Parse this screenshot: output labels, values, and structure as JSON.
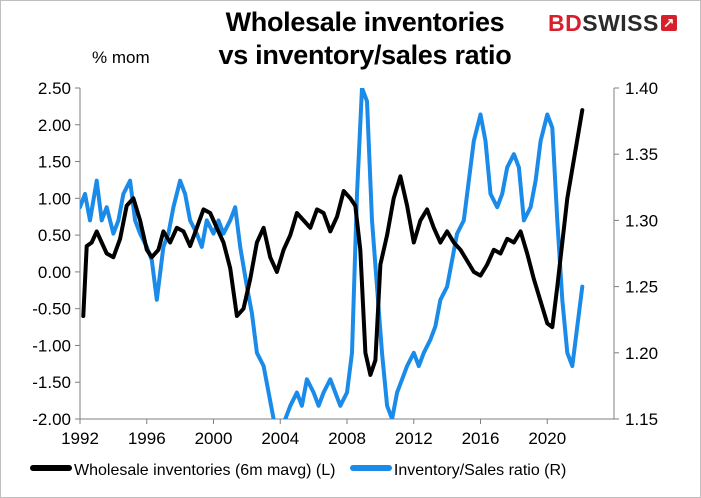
{
  "title_lines": [
    "Wholesale inventories",
    "vs inventory/sales ratio"
  ],
  "logo": {
    "part1": "BD",
    "part2": "SWISS",
    "mark": "↗"
  },
  "chart_data": {
    "type": "line",
    "title": "Wholesale inventories vs inventory/sales ratio",
    "left_axis_unit": "% mom",
    "left_ylim": [
      -2.0,
      2.5
    ],
    "left_ticks": [
      "2.50",
      "2.00",
      "1.50",
      "1.00",
      "0.50",
      "0.00",
      "-0.50",
      "-1.00",
      "-1.50",
      "-2.00"
    ],
    "right_ylim": [
      1.15,
      1.4
    ],
    "right_ticks": [
      "1.40",
      "1.35",
      "1.30",
      "1.25",
      "1.20",
      "1.15"
    ],
    "xlim": [
      1992,
      2024
    ],
    "x_ticks": [
      "1992",
      "1996",
      "2000",
      "2004",
      "2008",
      "2012",
      "2016",
      "2020"
    ],
    "grid": false,
    "legend_position": "bottom",
    "series": [
      {
        "name": "Wholesale inventories (6m mavg) (L)",
        "axis": "left",
        "color": "#000000",
        "x": [
          1992.2,
          1992.4,
          1992.7,
          1993.0,
          1993.3,
          1993.6,
          1994.0,
          1994.4,
          1994.8,
          1995.2,
          1995.6,
          1996.0,
          1996.3,
          1996.7,
          1997.0,
          1997.4,
          1997.8,
          1998.2,
          1998.6,
          1999.0,
          1999.4,
          1999.8,
          2000.2,
          2000.6,
          2001.0,
          2001.4,
          2001.8,
          2002.2,
          2002.6,
          2003.0,
          2003.4,
          2003.8,
          2004.2,
          2004.6,
          2005.0,
          2005.4,
          2005.8,
          2006.2,
          2006.6,
          2007.0,
          2007.4,
          2007.8,
          2008.2,
          2008.5,
          2008.8,
          2009.1,
          2009.4,
          2009.7,
          2010.0,
          2010.4,
          2010.8,
          2011.2,
          2011.6,
          2012.0,
          2012.4,
          2012.8,
          2013.2,
          2013.6,
          2014.0,
          2014.4,
          2014.8,
          2015.2,
          2015.6,
          2016.0,
          2016.4,
          2016.8,
          2017.2,
          2017.6,
          2018.0,
          2018.4,
          2018.8,
          2019.2,
          2019.6,
          2020.0,
          2020.3,
          2020.6,
          2020.9,
          2021.2,
          2021.5,
          2021.8,
          2022.1
        ],
        "values": [
          -0.6,
          0.35,
          0.4,
          0.55,
          0.4,
          0.25,
          0.2,
          0.45,
          0.9,
          1.0,
          0.7,
          0.3,
          0.2,
          0.3,
          0.55,
          0.4,
          0.6,
          0.55,
          0.35,
          0.6,
          0.85,
          0.8,
          0.6,
          0.4,
          0.05,
          -0.6,
          -0.5,
          -0.1,
          0.4,
          0.6,
          0.2,
          0.0,
          0.3,
          0.5,
          0.8,
          0.7,
          0.6,
          0.85,
          0.8,
          0.55,
          0.75,
          1.1,
          1.0,
          0.9,
          0.3,
          -1.1,
          -1.4,
          -1.2,
          0.1,
          0.5,
          1.0,
          1.3,
          0.9,
          0.4,
          0.7,
          0.85,
          0.6,
          0.4,
          0.55,
          0.4,
          0.3,
          0.15,
          0.0,
          -0.05,
          0.1,
          0.3,
          0.25,
          0.45,
          0.4,
          0.55,
          0.25,
          -0.1,
          -0.4,
          -0.7,
          -0.75,
          -0.2,
          0.4,
          1.0,
          1.4,
          1.8,
          2.2
        ]
      },
      {
        "name": "Inventory/Sales ratio (R)",
        "axis": "right",
        "color": "#1a8be8",
        "x": [
          1992.0,
          1992.3,
          1992.6,
          1993.0,
          1993.3,
          1993.6,
          1994.0,
          1994.3,
          1994.6,
          1995.0,
          1995.3,
          1995.6,
          1996.0,
          1996.3,
          1996.6,
          1997.0,
          1997.3,
          1997.6,
          1998.0,
          1998.3,
          1998.6,
          1999.0,
          1999.3,
          1999.6,
          2000.0,
          2000.3,
          2000.6,
          2001.0,
          2001.3,
          2001.6,
          2002.0,
          2002.3,
          2002.6,
          2003.0,
          2003.3,
          2003.6,
          2004.0,
          2004.3,
          2004.6,
          2005.0,
          2005.3,
          2005.6,
          2006.0,
          2006.3,
          2006.6,
          2007.0,
          2007.3,
          2007.6,
          2008.0,
          2008.3,
          2008.6,
          2008.9,
          2009.2,
          2009.5,
          2009.8,
          2010.1,
          2010.4,
          2010.7,
          2011.0,
          2011.3,
          2011.6,
          2012.0,
          2012.3,
          2012.6,
          2013.0,
          2013.3,
          2013.6,
          2014.0,
          2014.3,
          2014.6,
          2015.0,
          2015.3,
          2015.6,
          2016.0,
          2016.3,
          2016.6,
          2017.0,
          2017.3,
          2017.6,
          2018.0,
          2018.3,
          2018.6,
          2019.0,
          2019.3,
          2019.6,
          2020.0,
          2020.3,
          2020.6,
          2020.9,
          2021.2,
          2021.5,
          2021.8,
          2022.1
        ],
        "values": [
          1.31,
          1.32,
          1.3,
          1.33,
          1.3,
          1.31,
          1.29,
          1.3,
          1.32,
          1.33,
          1.3,
          1.29,
          1.28,
          1.27,
          1.24,
          1.28,
          1.29,
          1.31,
          1.33,
          1.32,
          1.3,
          1.29,
          1.28,
          1.3,
          1.29,
          1.3,
          1.29,
          1.3,
          1.31,
          1.28,
          1.25,
          1.23,
          1.2,
          1.19,
          1.17,
          1.15,
          1.14,
          1.15,
          1.16,
          1.17,
          1.16,
          1.18,
          1.17,
          1.16,
          1.17,
          1.18,
          1.17,
          1.16,
          1.17,
          1.2,
          1.32,
          1.4,
          1.39,
          1.3,
          1.25,
          1.2,
          1.16,
          1.15,
          1.17,
          1.18,
          1.19,
          1.2,
          1.19,
          1.2,
          1.21,
          1.22,
          1.24,
          1.25,
          1.27,
          1.29,
          1.3,
          1.33,
          1.36,
          1.38,
          1.36,
          1.32,
          1.31,
          1.32,
          1.34,
          1.35,
          1.34,
          1.3,
          1.31,
          1.33,
          1.36,
          1.38,
          1.37,
          1.3,
          1.24,
          1.2,
          1.19,
          1.22,
          1.25
        ]
      }
    ]
  }
}
